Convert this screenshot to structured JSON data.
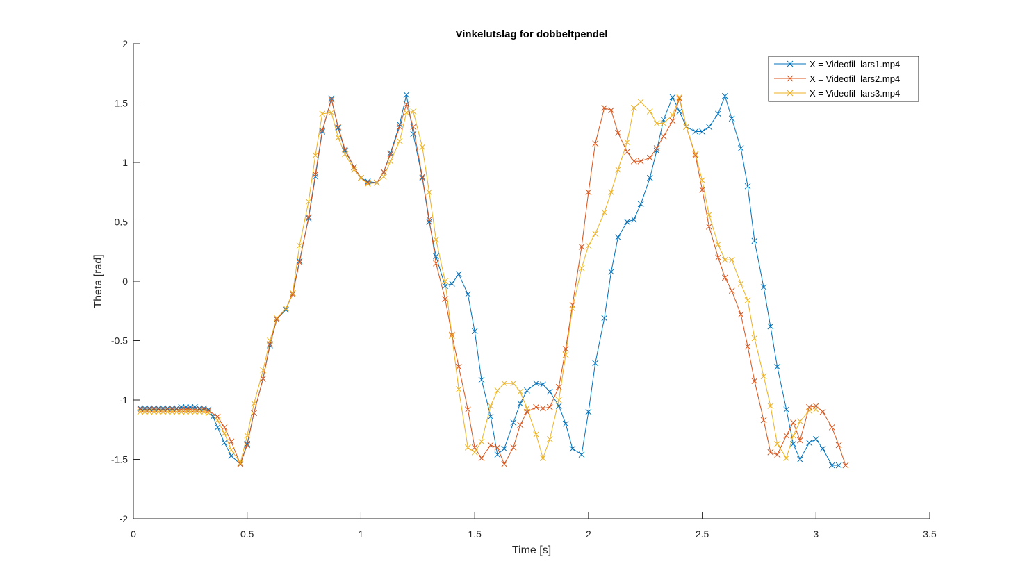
{
  "chart_data": {
    "type": "line",
    "title": "Vinkelutslag for dobbeltpendel",
    "xlabel": "Time [s]",
    "ylabel": "Theta [rad]",
    "xlim": [
      0,
      3.5
    ],
    "ylim": [
      -2,
      2
    ],
    "xticks": [
      0,
      0.5,
      1,
      1.5,
      2,
      2.5,
      3,
      3.5
    ],
    "xtick_labels": [
      "0",
      "0.5",
      "1",
      "1.5",
      "2",
      "2.5",
      "3",
      "3.5"
    ],
    "yticks": [
      -2,
      -1.5,
      -1,
      -0.5,
      0,
      0.5,
      1,
      1.5,
      2
    ],
    "ytick_labels": [
      "-2",
      "-1.5",
      "-1",
      "-0.5",
      "0",
      "0.5",
      "1",
      "1.5",
      "2"
    ],
    "grid": false,
    "legend_position": "top-right",
    "marker": "x",
    "series": [
      {
        "name": "X = Videofil  lars1.mp4",
        "color": "#0072BD",
        "x": [
          0.03,
          0.05,
          0.07,
          0.09,
          0.11,
          0.13,
          0.15,
          0.17,
          0.19,
          0.21,
          0.23,
          0.25,
          0.27,
          0.29,
          0.31,
          0.33,
          0.35,
          0.37,
          0.4,
          0.43,
          0.47,
          0.5,
          0.53,
          0.57,
          0.6,
          0.63,
          0.67,
          0.7,
          0.73,
          0.77,
          0.8,
          0.83,
          0.87,
          0.9,
          0.93,
          0.97,
          1.0,
          1.03,
          1.07,
          1.1,
          1.13,
          1.17,
          1.2,
          1.23,
          1.27,
          1.3,
          1.33,
          1.37,
          1.4,
          1.43,
          1.47,
          1.5,
          1.53,
          1.57,
          1.6,
          1.63,
          1.67,
          1.7,
          1.73,
          1.77,
          1.8,
          1.83,
          1.87,
          1.9,
          1.93,
          1.97,
          2.0,
          2.03,
          2.07,
          2.1,
          2.13,
          2.17,
          2.2,
          2.23,
          2.27,
          2.3,
          2.33,
          2.37,
          2.4,
          2.43,
          2.47,
          2.5,
          2.53,
          2.57,
          2.6,
          2.63,
          2.67,
          2.7,
          2.73,
          2.77,
          2.8,
          2.83,
          2.87,
          2.9,
          2.93,
          2.97,
          3.0,
          3.03,
          3.07,
          3.1
        ],
        "y": [
          -1.07,
          -1.07,
          -1.07,
          -1.07,
          -1.07,
          -1.07,
          -1.07,
          -1.07,
          -1.07,
          -1.06,
          -1.06,
          -1.06,
          -1.06,
          -1.07,
          -1.07,
          -1.08,
          -1.14,
          -1.23,
          -1.36,
          -1.47,
          -1.54,
          -1.37,
          -1.11,
          -0.82,
          -0.54,
          -0.32,
          -0.24,
          -0.1,
          0.17,
          0.53,
          0.88,
          1.26,
          1.54,
          1.29,
          1.1,
          0.96,
          0.87,
          0.84,
          0.83,
          0.92,
          1.08,
          1.32,
          1.57,
          1.24,
          0.87,
          0.5,
          0.21,
          -0.04,
          -0.02,
          0.06,
          -0.11,
          -0.42,
          -0.83,
          -1.14,
          -1.46,
          -1.41,
          -1.19,
          -1.03,
          -0.92,
          -0.86,
          -0.87,
          -0.93,
          -1.05,
          -1.2,
          -1.41,
          -1.46,
          -1.1,
          -0.69,
          -0.31,
          0.08,
          0.37,
          0.5,
          0.52,
          0.65,
          0.87,
          1.1,
          1.36,
          1.55,
          1.43,
          1.3,
          1.26,
          1.26,
          1.3,
          1.41,
          1.56,
          1.37,
          1.12,
          0.8,
          0.34,
          -0.05,
          -0.38,
          -0.72,
          -1.08,
          -1.37,
          -1.5,
          -1.36,
          -1.33,
          -1.41,
          -1.55,
          -1.55
        ]
      },
      {
        "name": "X = Videofil  lars2.mp4",
        "color": "#D95319",
        "x": [
          0.03,
          0.05,
          0.07,
          0.09,
          0.11,
          0.13,
          0.15,
          0.17,
          0.19,
          0.21,
          0.23,
          0.25,
          0.27,
          0.29,
          0.31,
          0.33,
          0.37,
          0.4,
          0.43,
          0.47,
          0.5,
          0.53,
          0.57,
          0.6,
          0.63,
          0.67,
          0.7,
          0.73,
          0.77,
          0.8,
          0.83,
          0.87,
          0.9,
          0.93,
          0.97,
          1.0,
          1.03,
          1.07,
          1.1,
          1.13,
          1.17,
          1.2,
          1.23,
          1.27,
          1.3,
          1.33,
          1.37,
          1.4,
          1.43,
          1.47,
          1.5,
          1.53,
          1.57,
          1.6,
          1.63,
          1.67,
          1.7,
          1.73,
          1.77,
          1.8,
          1.83,
          1.87,
          1.9,
          1.93,
          1.97,
          2.0,
          2.03,
          2.07,
          2.1,
          2.13,
          2.17,
          2.2,
          2.23,
          2.27,
          2.3,
          2.33,
          2.37,
          2.4,
          2.43,
          2.47,
          2.5,
          2.53,
          2.57,
          2.6,
          2.63,
          2.67,
          2.7,
          2.73,
          2.77,
          2.8,
          2.83,
          2.87,
          2.9,
          2.93,
          2.97,
          3.0,
          3.03,
          3.07,
          3.1,
          3.13
        ],
        "y": [
          -1.08,
          -1.08,
          -1.08,
          -1.08,
          -1.08,
          -1.08,
          -1.08,
          -1.08,
          -1.08,
          -1.08,
          -1.08,
          -1.08,
          -1.08,
          -1.08,
          -1.08,
          -1.09,
          -1.14,
          -1.23,
          -1.35,
          -1.54,
          -1.38,
          -1.11,
          -0.82,
          -0.53,
          -0.32,
          -0.23,
          -0.11,
          0.16,
          0.54,
          0.9,
          1.27,
          1.53,
          1.3,
          1.11,
          0.96,
          0.87,
          0.83,
          0.83,
          0.92,
          1.07,
          1.3,
          1.49,
          1.3,
          0.88,
          0.52,
          0.15,
          -0.15,
          -0.45,
          -0.72,
          -1.08,
          -1.4,
          -1.49,
          -1.38,
          -1.4,
          -1.54,
          -1.4,
          -1.21,
          -1.1,
          -1.06,
          -1.07,
          -1.06,
          -0.89,
          -0.57,
          -0.2,
          0.29,
          0.75,
          1.16,
          1.46,
          1.44,
          1.25,
          1.09,
          1.01,
          1.01,
          1.04,
          1.12,
          1.22,
          1.35,
          1.54,
          1.3,
          1.06,
          0.77,
          0.46,
          0.2,
          0.03,
          -0.08,
          -0.28,
          -0.55,
          -0.84,
          -1.17,
          -1.44,
          -1.46,
          -1.3,
          -1.19,
          -1.34,
          -1.06,
          -1.05,
          -1.1,
          -1.23,
          -1.38,
          -1.55
        ]
      },
      {
        "name": "X = Videofil  lars3.mp4",
        "color": "#EDB120",
        "x": [
          0.03,
          0.05,
          0.07,
          0.09,
          0.11,
          0.13,
          0.15,
          0.17,
          0.19,
          0.21,
          0.23,
          0.25,
          0.27,
          0.29,
          0.31,
          0.33,
          0.37,
          0.4,
          0.43,
          0.47,
          0.5,
          0.53,
          0.57,
          0.6,
          0.63,
          0.67,
          0.7,
          0.73,
          0.77,
          0.8,
          0.83,
          0.87,
          0.9,
          0.93,
          0.97,
          1.0,
          1.03,
          1.07,
          1.1,
          1.13,
          1.17,
          1.2,
          1.23,
          1.27,
          1.3,
          1.33,
          1.37,
          1.4,
          1.43,
          1.47,
          1.5,
          1.53,
          1.57,
          1.6,
          1.63,
          1.67,
          1.7,
          1.73,
          1.77,
          1.8,
          1.83,
          1.87,
          1.9,
          1.93,
          1.97,
          2.0,
          2.03,
          2.07,
          2.1,
          2.13,
          2.17,
          2.2,
          2.23,
          2.27,
          2.3,
          2.33,
          2.37,
          2.4,
          2.43,
          2.47,
          2.5,
          2.53,
          2.57,
          2.6,
          2.63,
          2.67,
          2.7,
          2.73,
          2.77,
          2.8,
          2.83,
          2.87,
          2.9,
          2.93,
          2.97,
          3.0,
          3.03,
          3.07,
          3.1
        ],
        "y": [
          -1.1,
          -1.1,
          -1.1,
          -1.1,
          -1.1,
          -1.1,
          -1.1,
          -1.1,
          -1.1,
          -1.1,
          -1.1,
          -1.1,
          -1.1,
          -1.1,
          -1.1,
          -1.11,
          -1.17,
          -1.28,
          -1.42,
          -1.53,
          -1.3,
          -1.03,
          -0.75,
          -0.5,
          -0.31,
          -0.23,
          -0.1,
          0.3,
          0.67,
          1.06,
          1.41,
          1.42,
          1.21,
          1.07,
          0.94,
          0.87,
          0.82,
          0.83,
          0.88,
          1.01,
          1.18,
          1.42,
          1.43,
          1.13,
          0.75,
          0.35,
          0.0,
          -0.46,
          -0.91,
          -1.4,
          -1.44,
          -1.35,
          -1.05,
          -0.92,
          -0.86,
          -0.86,
          -0.93,
          -1.07,
          -1.29,
          -1.49,
          -1.33,
          -1.0,
          -0.62,
          -0.23,
          0.11,
          0.3,
          0.4,
          0.58,
          0.75,
          0.94,
          1.17,
          1.46,
          1.51,
          1.43,
          1.33,
          1.33,
          1.4,
          1.55,
          1.3,
          1.07,
          0.85,
          0.56,
          0.31,
          0.18,
          0.18,
          -0.02,
          -0.16,
          -0.48,
          -0.8,
          -1.05,
          -1.37,
          -1.49,
          -1.3,
          -1.18,
          -1.09,
          -1.08,
          null,
          null,
          null
        ]
      }
    ]
  }
}
